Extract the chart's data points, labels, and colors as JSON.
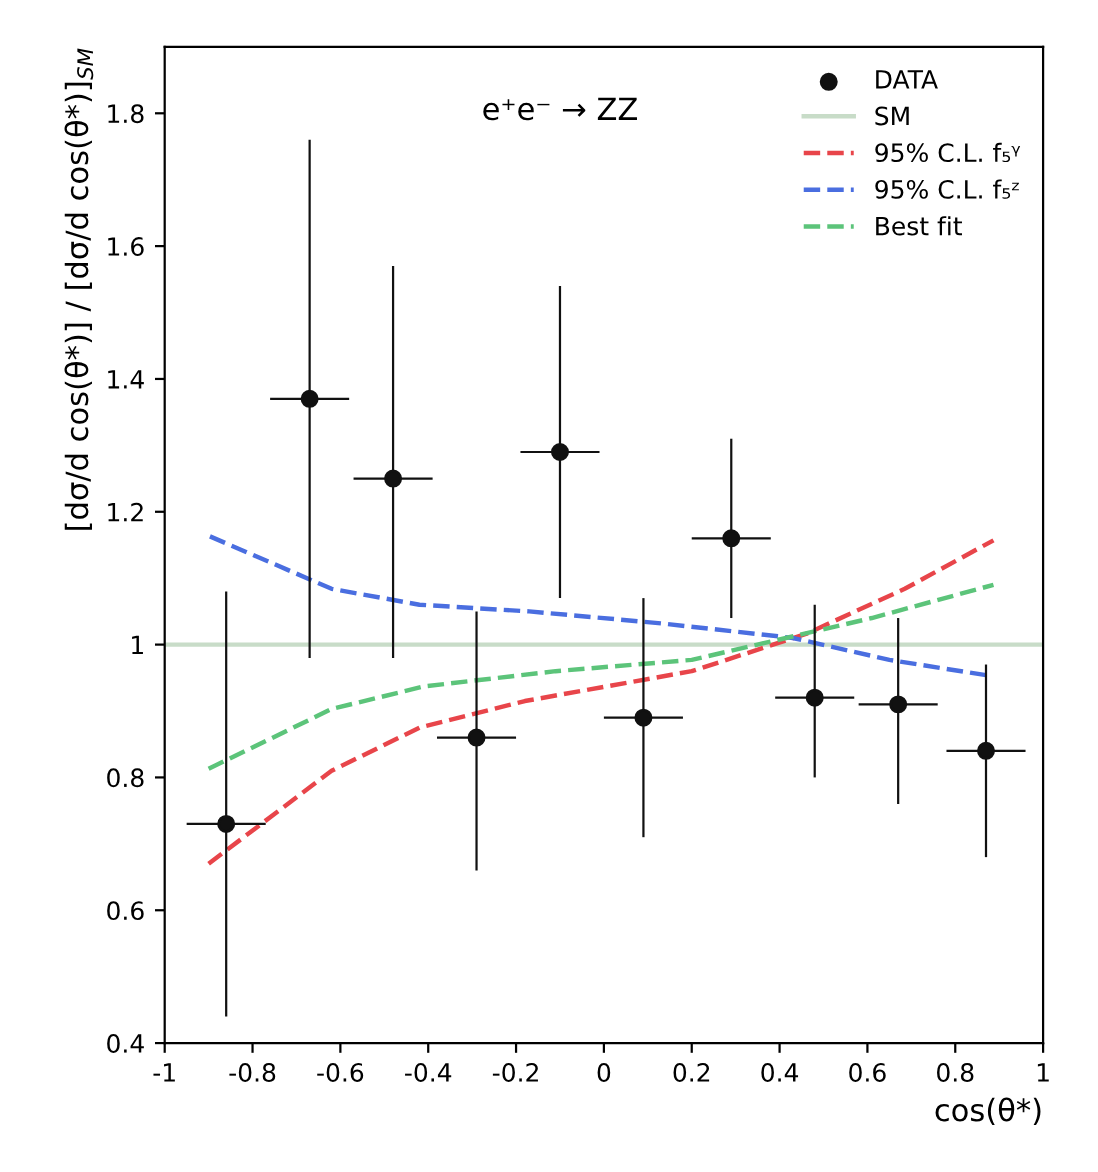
{
  "chart_data": {
    "type": "line",
    "xlabel": "cos(θ*)",
    "ylabel": "[dσ/d cos(θ*)] / [dσ/d cos(θ*)]$_{SM}$",
    "annotations": [
      "e⁺e⁻ → ZZ"
    ],
    "xlim": [
      -1,
      1
    ],
    "xticks": [
      -1,
      -0.8,
      -0.6,
      -0.4,
      -0.2,
      0,
      0.2,
      0.4,
      0.6,
      0.8,
      1
    ],
    "ylim": [
      0.4,
      1.9
    ],
    "yticks": [
      0.4,
      0.6,
      0.8,
      1,
      1.2,
      1.4,
      1.6,
      1.8
    ],
    "grid": false,
    "legend": "top right",
    "series": [
      {
        "name": "DATA",
        "type": "scatter",
        "marker": "circle",
        "color": "#111111",
        "x": [
          -0.86,
          -0.67,
          -0.48,
          -0.29,
          -0.1,
          0.09,
          0.29,
          0.48,
          0.67,
          0.87
        ],
        "values": [
          0.73,
          1.37,
          1.25,
          0.86,
          1.29,
          0.89,
          1.16,
          0.92,
          0.91,
          0.84
        ],
        "errors": [
          [
            0.44,
            1.08
          ],
          [
            0.98,
            1.76
          ],
          [
            0.98,
            1.57
          ],
          [
            0.66,
            1.05
          ],
          [
            1.07,
            1.54
          ],
          [
            0.71,
            1.07
          ],
          [
            1.04,
            1.31
          ],
          [
            0.8,
            1.06
          ],
          [
            0.76,
            1.04
          ],
          [
            0.68,
            0.97
          ]
        ],
        "xerrors": [
          0.09,
          0.09,
          0.09,
          0.09,
          0.09,
          0.09,
          0.09,
          0.09,
          0.09,
          0.09
        ]
      },
      {
        "name": "SM",
        "line_style": "solid",
        "color": "#c8dcc8",
        "x": [
          -1,
          1
        ],
        "values": [
          1,
          1
        ]
      },
      {
        "name": "95% C.L. f₅ᵞ",
        "line_style": "dashed",
        "color": "#e8454a",
        "x": [
          -0.9,
          -0.62,
          -0.42,
          -0.18,
          0.2,
          0.46,
          0.685,
          0.887
        ],
        "values": [
          0.67,
          0.81,
          0.875,
          0.915,
          0.96,
          1.016,
          1.084,
          1.157
        ]
      },
      {
        "name": "95% C.L. f₅ᶻ",
        "line_style": "dashed",
        "color": "#4a6ee0",
        "x": [
          -0.897,
          -0.62,
          -0.42,
          -0.17,
          0.13,
          0.43,
          0.65,
          0.87
        ],
        "values": [
          1.163,
          1.084,
          1.06,
          1.05,
          1.032,
          1.01,
          0.977,
          0.954
        ]
      },
      {
        "name": "Best fit",
        "line_style": "dashed",
        "color": "#5cc47a",
        "x": [
          -0.9,
          -0.62,
          -0.41,
          -0.11,
          0.2,
          0.61,
          0.887
        ],
        "values": [
          0.813,
          0.903,
          0.937,
          0.96,
          0.977,
          1.04,
          1.09
        ]
      }
    ]
  }
}
